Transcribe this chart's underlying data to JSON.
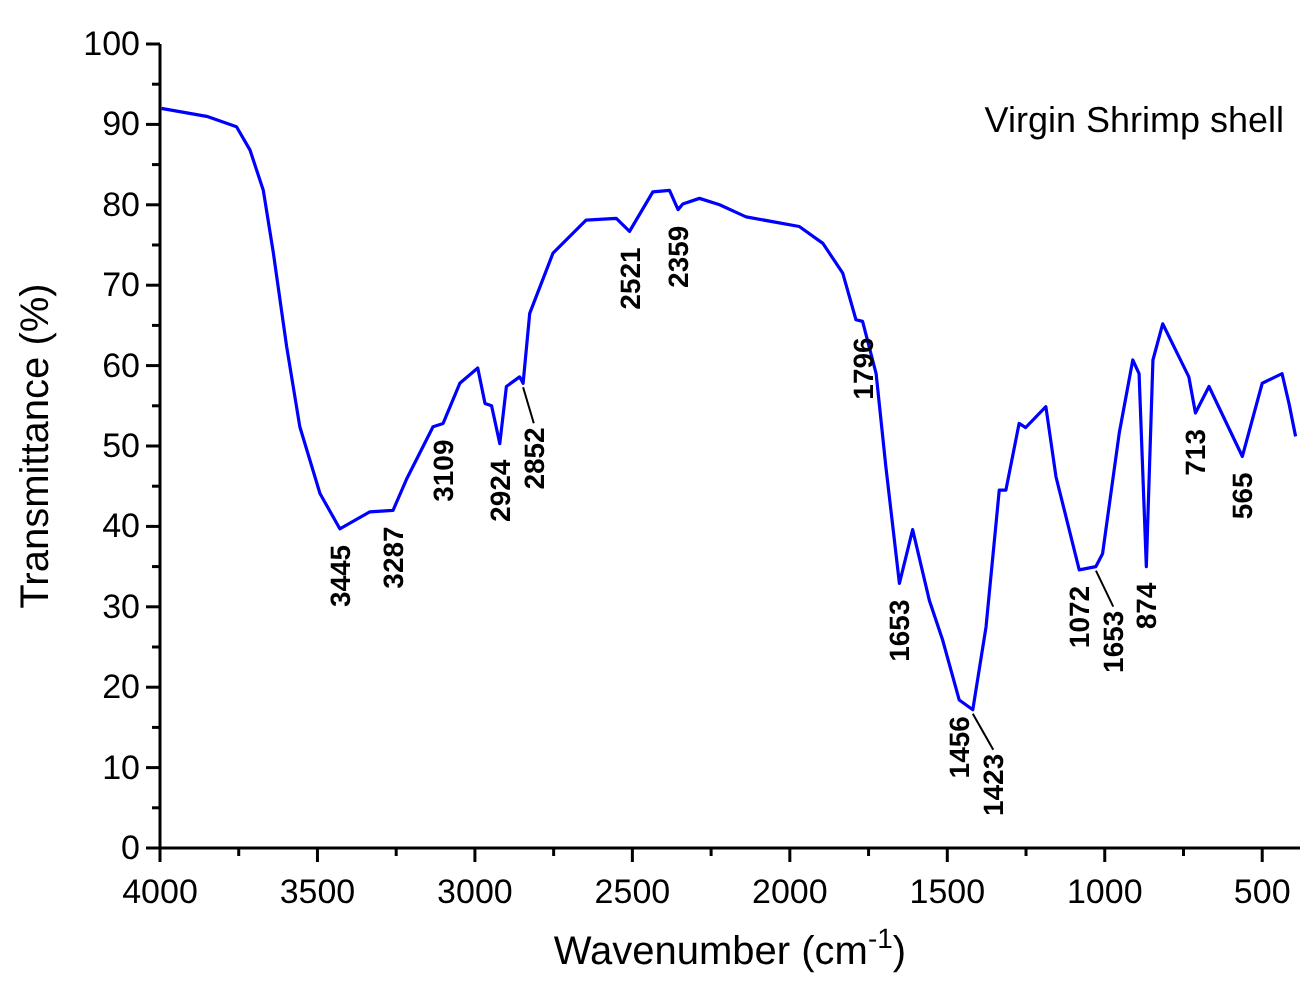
{
  "chart_data": {
    "type": "line",
    "title": "Virgin Shrimp shell",
    "xlabel": "Wavenumber (cm$^{-1}$)",
    "ylabel": "Transmittance (%)",
    "xlim": [
      4000,
      380
    ],
    "ylim": [
      0,
      100
    ],
    "xticks": [
      4000,
      {
        "value": 3750,
        "label": null
      },
      3500,
      {
        "value": 3250,
        "label": null
      },
      3000,
      {
        "value": 2750,
        "label": null
      },
      2500,
      {
        "value": 2250,
        "label": null
      },
      2000,
      {
        "value": 1750,
        "label": null
      },
      1500,
      {
        "value": 1250,
        "label": null
      },
      1000,
      {
        "value": 750,
        "label": null
      },
      500
    ],
    "yticks": [
      0,
      {
        "value": 5,
        "label": null
      },
      10,
      {
        "value": 15,
        "label": null
      },
      20,
      {
        "value": 25,
        "label": null
      },
      30,
      {
        "value": 35,
        "label": null
      },
      40,
      {
        "value": 45,
        "label": null
      },
      50,
      {
        "value": 55,
        "label": null
      },
      60,
      {
        "value": 65,
        "label": null
      },
      70,
      {
        "value": 75,
        "label": null
      },
      80,
      {
        "value": 85,
        "label": null
      },
      90,
      {
        "value": 95,
        "label": null
      },
      100
    ],
    "grid": false,
    "marker": "none",
    "line_style": "solid",
    "series": [
      {
        "color": "#0000ff",
        "x": [
          3996,
          3852,
          3757,
          3714,
          3672,
          3640,
          3598,
          3556,
          3492,
          3429,
          3334,
          3260,
          3218,
          3133,
          3101,
          3048,
          2991,
          2968,
          2947,
          2921,
          2900,
          2858,
          2847,
          2826,
          2752,
          2647,
          2551,
          2509,
          2435,
          2382,
          2355,
          2340,
          2287,
          2223,
          2139,
          1970,
          1895,
          1832,
          1790,
          1769,
          1726,
          1695,
          1652,
          1610,
          1557,
          1515,
          1462,
          1419,
          1377,
          1335,
          1314,
          1272,
          1251,
          1187,
          1155,
          1081,
          1028,
          1007,
          954,
          911,
          891,
          868,
          847,
          816,
          733,
          712,
          669,
          563,
          500,
          437,
          415,
          394
        ],
        "values": [
          92.0,
          91.0,
          89.7,
          86.8,
          81.8,
          74.0,
          62.4,
          52.4,
          44.1,
          39.7,
          41.8,
          42.0,
          45.8,
          52.4,
          52.8,
          57.8,
          59.7,
          55.3,
          55.0,
          50.3,
          57.4,
          58.6,
          57.8,
          66.5,
          74.0,
          78.1,
          78.3,
          76.7,
          81.6,
          81.8,
          79.4,
          80.1,
          80.8,
          80.0,
          78.5,
          77.3,
          75.2,
          71.5,
          65.7,
          65.5,
          59.0,
          47.4,
          32.9,
          39.6,
          30.8,
          25.9,
          18.4,
          17.2,
          27.5,
          44.5,
          44.5,
          52.8,
          52.3,
          54.9,
          46.2,
          34.6,
          35.0,
          36.6,
          51.6,
          60.7,
          59.0,
          35.0,
          60.7,
          65.2,
          58.6,
          54.1,
          57.4,
          48.7,
          57.8,
          59.0,
          55.3,
          51.2
        ]
      }
    ],
    "annotations": [
      {
        "text": "3445",
        "x": 3429,
        "y": 39.7
      },
      {
        "text": "3287",
        "x": 3260,
        "y": 42.0
      },
      {
        "text": "3109",
        "x": 3101,
        "y": 52.8
      },
      {
        "text": "2924",
        "x": 2921,
        "y": 50.3
      },
      {
        "text": "2852",
        "x": 2847,
        "y": 57.8
      },
      {
        "text": "2521",
        "x": 2509,
        "y": 76.7
      },
      {
        "text": "2359",
        "x": 2355,
        "y": 79.4
      },
      {
        "text": "1796",
        "x": 1769,
        "y": 65.5
      },
      {
        "text": "1653",
        "x": 1652,
        "y": 32.9
      },
      {
        "text": "1456",
        "x": 1462,
        "y": 18.4
      },
      {
        "text": "1423",
        "x": 1419,
        "y": 17.2
      },
      {
        "text": "1072",
        "x": 1081,
        "y": 34.6
      },
      {
        "text": "1653",
        "x": 1028,
        "y": 35.0
      },
      {
        "text": "874",
        "x": 868,
        "y": 35.0
      },
      {
        "text": "713",
        "x": 712,
        "y": 54.1
      },
      {
        "text": "565",
        "x": 563,
        "y": 48.7
      }
    ]
  }
}
